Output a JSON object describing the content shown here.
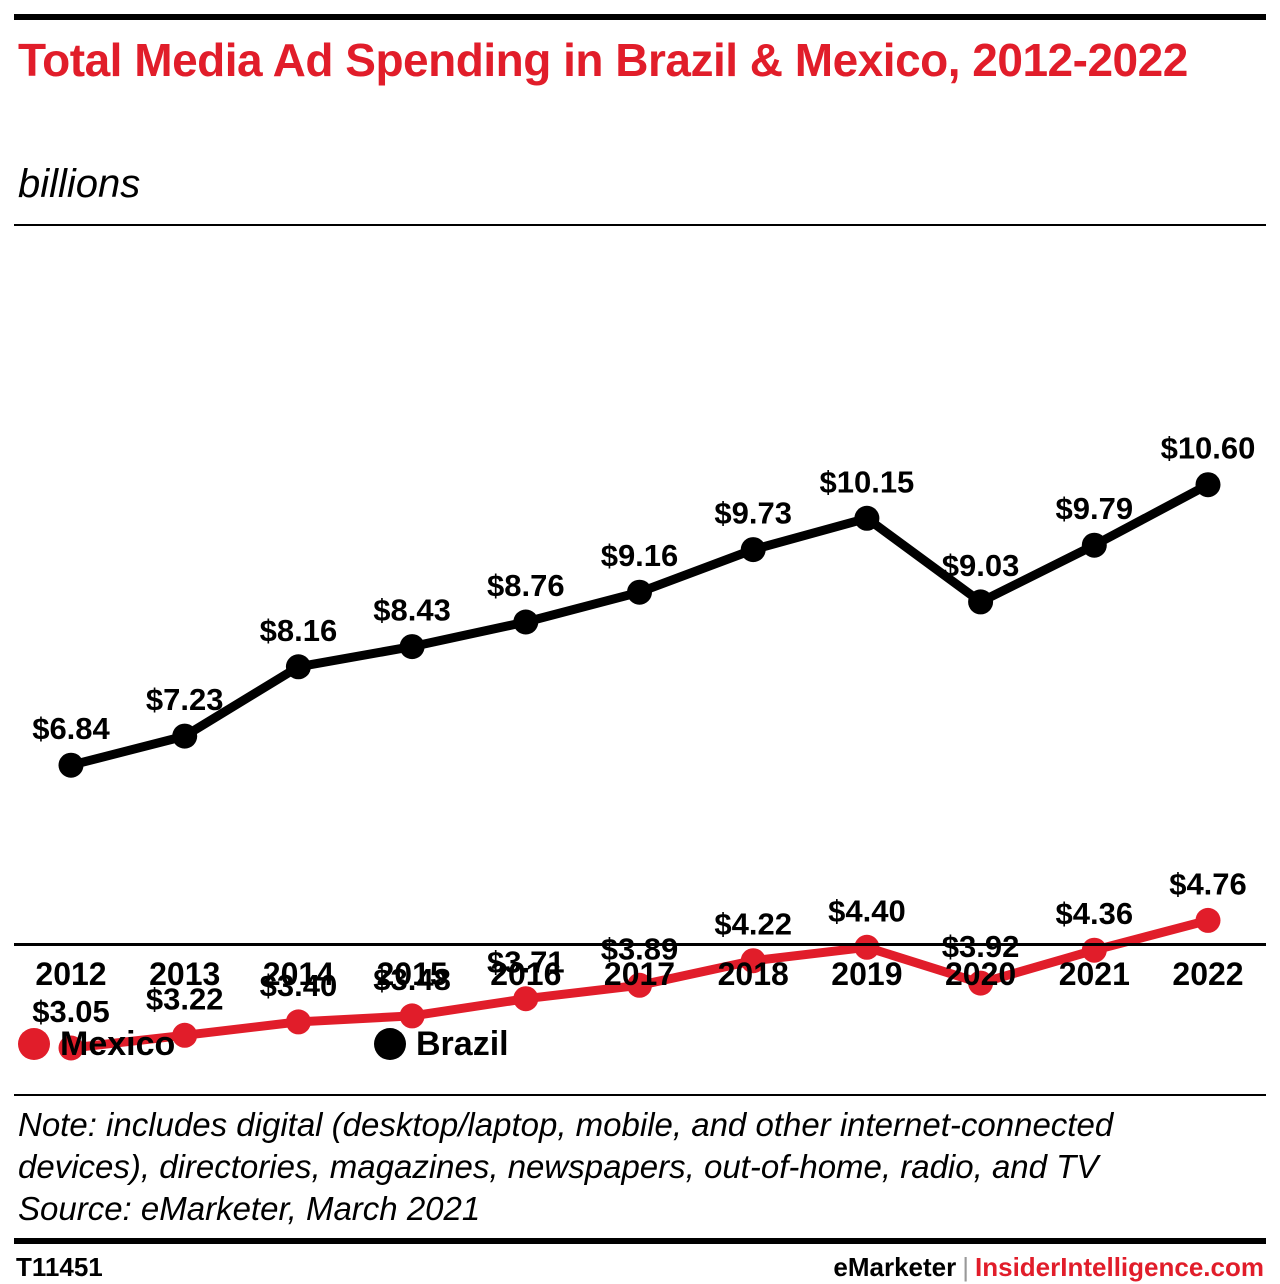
{
  "header": {
    "title": "Total Media Ad Spending in Brazil & Mexico, 2012-2022",
    "subtitle": "billions"
  },
  "chart_data": {
    "type": "line",
    "title": "Total Media Ad Spending in Brazil & Mexico, 2012-2022",
    "subtitle": "billions",
    "xlabel": "",
    "ylabel": "",
    "categories": [
      "2012",
      "2013",
      "2014",
      "2015",
      "2016",
      "2017",
      "2018",
      "2019",
      "2020",
      "2021",
      "2022"
    ],
    "ylim": [
      0,
      12.5
    ],
    "grid": false,
    "legend_position": "bottom-left",
    "series": [
      {
        "name": "Mexico",
        "color": "#e11d2a",
        "values": [
          3.05,
          3.22,
          3.4,
          3.48,
          3.71,
          3.89,
          4.22,
          4.4,
          3.92,
          4.36,
          4.76
        ],
        "labels": [
          "$3.05",
          "$3.22",
          "$3.40",
          "$3.48",
          "$3.71",
          "$3.89",
          "$4.22",
          "$4.40",
          "$3.92",
          "$4.36",
          "$4.76"
        ]
      },
      {
        "name": "Brazil",
        "color": "#000000",
        "values": [
          6.84,
          7.23,
          8.16,
          8.43,
          8.76,
          9.16,
          9.73,
          10.15,
          9.03,
          9.79,
          10.6
        ],
        "labels": [
          "$6.84",
          "$7.23",
          "$8.16",
          "$8.43",
          "$8.76",
          "$9.16",
          "$9.73",
          "$10.15",
          "$9.03",
          "$9.79",
          "$10.60"
        ]
      }
    ]
  },
  "legend": {
    "items": [
      {
        "label": "Mexico",
        "color": "#e11d2a"
      },
      {
        "label": "Brazil",
        "color": "#000000"
      }
    ]
  },
  "footer": {
    "note_line1": "Note: includes digital (desktop/laptop, mobile, and other internet-connected",
    "note_line2": "devices), directories, magazines, newspapers, out-of-home, radio, and TV",
    "source": "Source: eMarketer, March 2021",
    "chart_id": "T11451",
    "brand": "eMarketer",
    "separator": "|",
    "site": "InsiderIntelligence.com"
  }
}
